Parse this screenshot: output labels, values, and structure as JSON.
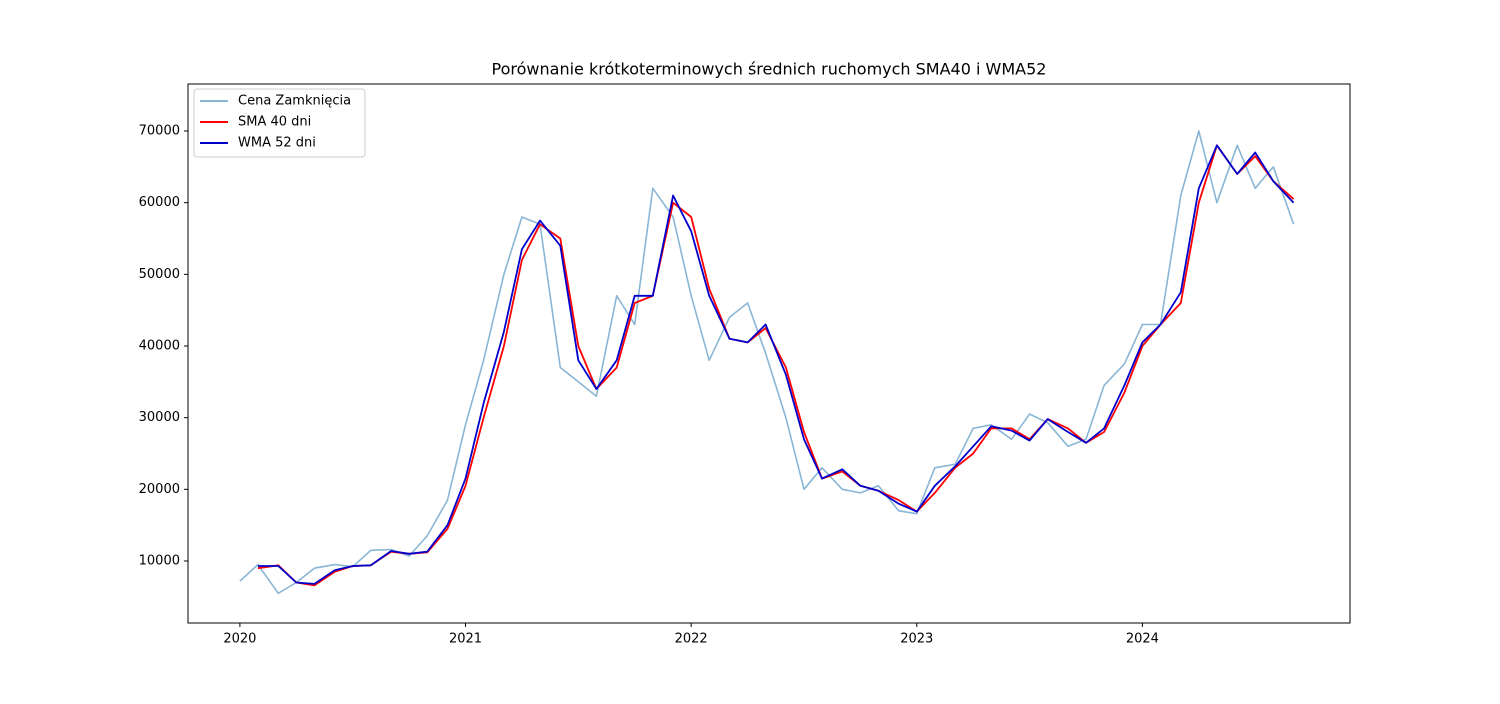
{
  "chart_data": {
    "type": "line",
    "title": "Porównanie krótkoterminowych średnich ruchomych SMA40 i WMA52",
    "x": [
      2020.0,
      2020.08,
      2020.17,
      2020.25,
      2020.33,
      2020.42,
      2020.5,
      2020.58,
      2020.67,
      2020.75,
      2020.83,
      2020.92,
      2021.0,
      2021.08,
      2021.17,
      2021.25,
      2021.33,
      2021.42,
      2021.5,
      2021.58,
      2021.67,
      2021.75,
      2021.83,
      2021.92,
      2022.0,
      2022.08,
      2022.17,
      2022.25,
      2022.33,
      2022.42,
      2022.5,
      2022.58,
      2022.67,
      2022.75,
      2022.83,
      2022.92,
      2023.0,
      2023.08,
      2023.17,
      2023.25,
      2023.33,
      2023.42,
      2023.5,
      2023.58,
      2023.67,
      2023.75,
      2023.83,
      2023.92,
      2024.0,
      2024.08,
      2024.17,
      2024.25,
      2024.33,
      2024.42,
      2024.5,
      2024.58,
      2024.67
    ],
    "series": [
      {
        "name": "Cena Zamknięcia",
        "color": "#8ab6d6",
        "values": [
          7200,
          9500,
          5500,
          7000,
          9000,
          9500,
          9200,
          11500,
          11600,
          10700,
          13500,
          18500,
          29000,
          38000,
          50000,
          58000,
          57000,
          37000,
          35000,
          33000,
          47000,
          43000,
          62000,
          58000,
          47000,
          38000,
          44000,
          46000,
          39000,
          30000,
          20000,
          23000,
          20000,
          19500,
          20500,
          17000,
          16600,
          23000,
          23500,
          28500,
          29000,
          27000,
          30500,
          29300,
          26000,
          27000,
          34500,
          37500,
          43000,
          43000,
          61000,
          70000,
          60000,
          68000,
          62000,
          65000,
          57000
        ]
      },
      {
        "name": "SMA 40 dni",
        "color": "#ff0000",
        "values": [
          null,
          9000,
          9400,
          7000,
          6600,
          8500,
          9300,
          9400,
          11300,
          11000,
          11200,
          14500,
          20500,
          30000,
          40000,
          52000,
          57000,
          55000,
          40000,
          34000,
          37000,
          46000,
          47000,
          60000,
          58000,
          48000,
          41000,
          40500,
          42500,
          37000,
          28000,
          21500,
          22500,
          20500,
          19800,
          18500,
          16900,
          19500,
          23000,
          25000,
          28500,
          28500,
          27000,
          29800,
          28500,
          26500,
          28000,
          33500,
          40000,
          43000,
          46000,
          60000,
          68000,
          64000,
          66500,
          63000,
          60500
        ]
      },
      {
        "name": "WMA 52 dni",
        "color": "#0000cc",
        "values": [
          null,
          9300,
          9300,
          7000,
          6800,
          8700,
          9300,
          9400,
          11400,
          11000,
          11300,
          15000,
          21500,
          32000,
          42000,
          53500,
          57500,
          54000,
          38000,
          34000,
          38000,
          47000,
          47000,
          61000,
          56000,
          47000,
          41000,
          40500,
          43000,
          36000,
          27000,
          21500,
          22800,
          20500,
          19800,
          18000,
          16900,
          20500,
          23200,
          26000,
          28800,
          28200,
          26800,
          29800,
          28000,
          26500,
          28500,
          34500,
          40500,
          43000,
          47500,
          62000,
          68000,
          64000,
          67000,
          63000,
          60000
        ]
      }
    ],
    "xlim": [
      2019.77,
      2024.92
    ],
    "xticks": [
      2020,
      2021,
      2022,
      2023,
      2024
    ],
    "ylim": [
      1350,
      76560
    ],
    "yticks": [
      10000,
      20000,
      30000,
      40000,
      50000,
      60000,
      70000
    ],
    "legend": "upper left"
  }
}
